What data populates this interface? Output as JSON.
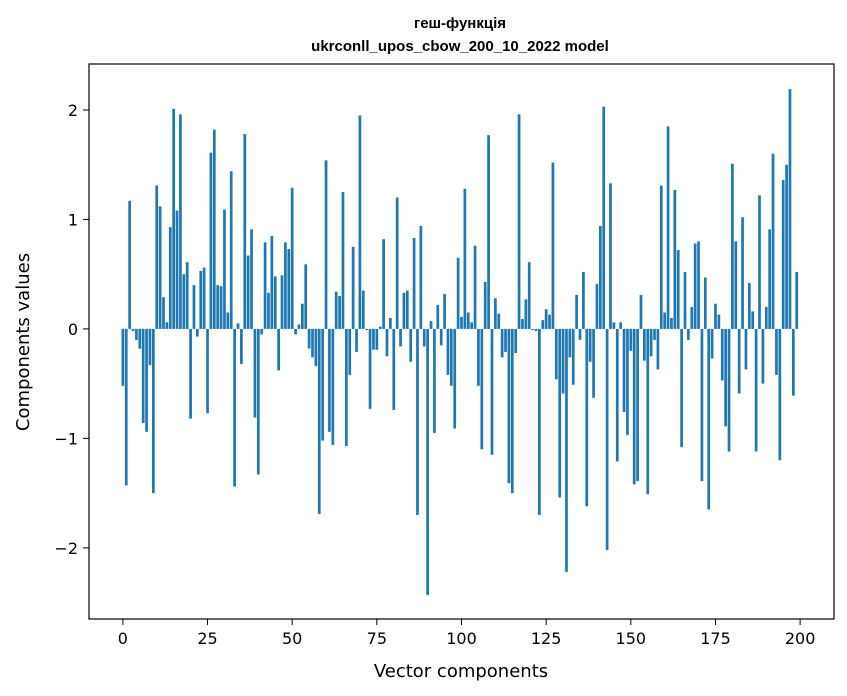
{
  "chart_data": {
    "type": "bar",
    "title_line1": "геш-функція",
    "title_line2": "ukrconll_upos_cbow_200_10_2022 model",
    "xlabel": "Vector components",
    "ylabel": "Components values",
    "xlim": [
      -10,
      210
    ],
    "ylim": [
      -2.65,
      2.42
    ],
    "xticks": [
      0,
      25,
      50,
      75,
      100,
      125,
      150,
      175,
      200
    ],
    "xtick_labels": [
      "0",
      "25",
      "50",
      "75",
      "100",
      "125",
      "150",
      "175",
      "200"
    ],
    "yticks": [
      -2,
      -1,
      0,
      1,
      2
    ],
    "ytick_labels": [
      "−2",
      "−1",
      "0",
      "1",
      "2"
    ],
    "bar_color": "#1f77b4",
    "values": [
      -0.52,
      -1.43,
      1.17,
      -0.02,
      -0.1,
      -0.18,
      -0.86,
      -0.94,
      -0.33,
      -1.5,
      1.31,
      1.12,
      0.29,
      0.06,
      0.93,
      2.01,
      1.08,
      1.96,
      0.5,
      0.61,
      -0.82,
      0.4,
      -0.07,
      0.53,
      0.56,
      -0.77,
      1.61,
      1.82,
      0.4,
      0.39,
      1.09,
      0.15,
      1.44,
      -1.44,
      0.05,
      -0.32,
      1.78,
      0.67,
      0.91,
      -0.81,
      -1.33,
      -0.05,
      0.79,
      0.33,
      0.85,
      0.48,
      -0.38,
      0.49,
      0.79,
      0.73,
      1.29,
      -0.05,
      0.04,
      0.23,
      0.59,
      -0.18,
      -0.26,
      -0.34,
      -1.69,
      -1.02,
      1.54,
      -0.94,
      -1.06,
      0.34,
      0.3,
      1.25,
      -1.07,
      -0.42,
      0.75,
      -0.21,
      1.95,
      0.35,
      -0.01,
      -0.73,
      -0.19,
      -0.19,
      0.02,
      0.82,
      -0.25,
      0.1,
      -0.74,
      1.2,
      -0.16,
      0.33,
      0.35,
      -0.3,
      0.83,
      -1.7,
      0.94,
      -0.16,
      -2.43,
      0.07,
      -0.95,
      0.22,
      -0.15,
      0.32,
      -0.42,
      -0.52,
      -0.91,
      0.65,
      0.11,
      1.28,
      0.15,
      0.06,
      0.76,
      -0.52,
      -1.1,
      0.43,
      1.77,
      -1.15,
      0.28,
      0.14,
      -0.26,
      -0.21,
      -1.41,
      -1.5,
      -0.22,
      1.96,
      0.09,
      0.27,
      0.61,
      -0.01,
      -0.02,
      -1.7,
      0.08,
      0.18,
      0.13,
      1.52,
      -0.46,
      -1.54,
      -0.59,
      -2.22,
      -0.26,
      -0.51,
      0.31,
      -0.1,
      0.52,
      -1.62,
      -0.3,
      -0.63,
      0.41,
      0.94,
      2.03,
      -2.02,
      1.33,
      0.06,
      -1.21,
      0.06,
      -0.76,
      -0.97,
      -0.2,
      -1.42,
      -1.39,
      0.31,
      -0.29,
      -1.51,
      -0.25,
      -0.1,
      -0.37,
      1.31,
      0.15,
      1.85,
      0.1,
      1.27,
      0.72,
      -1.08,
      0.52,
      -0.1,
      0.2,
      0.78,
      0.8,
      -1.39,
      0.47,
      -1.65,
      -0.27,
      0.23,
      0.13,
      -0.47,
      -0.89,
      -1.12,
      1.51,
      0.8,
      -0.59,
      1.02,
      -0.37,
      0.42,
      0.16,
      -1.12,
      1.22,
      -0.5,
      0.2,
      0.91,
      1.6,
      -0.42,
      -1.2,
      1.36,
      1.5,
      2.19,
      -0.61,
      0.52
    ]
  }
}
